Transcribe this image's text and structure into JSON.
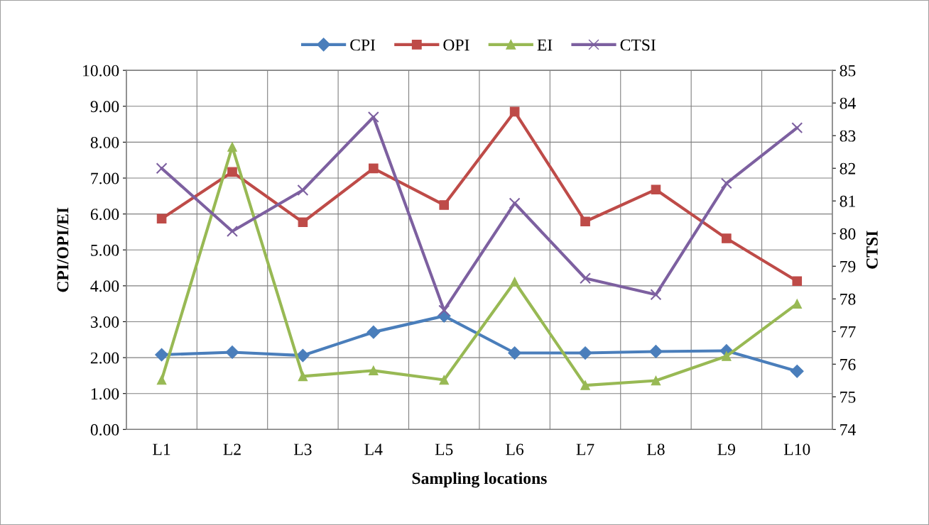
{
  "chart_data": {
    "type": "line",
    "xlabel": "Sampling locations",
    "ylabel": "CPI/OPI/EI",
    "y2label": "CTSI",
    "categories": [
      "L1",
      "L2",
      "L3",
      "L4",
      "L5",
      "L6",
      "L7",
      "L8",
      "L9",
      "L10"
    ],
    "series": [
      {
        "name": "CPI",
        "color": "#4a7ebb",
        "marker": "diamond",
        "values": [
          2.08,
          2.15,
          2.06,
          2.71,
          3.16,
          2.13,
          2.13,
          2.17,
          2.19,
          1.62
        ]
      },
      {
        "name": "OPI",
        "color": "#be4b48",
        "marker": "square",
        "values": [
          5.87,
          7.17,
          5.77,
          7.27,
          6.25,
          8.85,
          5.79,
          6.68,
          5.32,
          4.13
        ]
      },
      {
        "name": "EI",
        "color": "#98b954",
        "marker": "triangle",
        "values": [
          1.38,
          7.87,
          1.48,
          1.64,
          1.38,
          4.11,
          1.23,
          1.36,
          2.04,
          3.5
        ]
      },
      {
        "name": "CTSI",
        "color": "#7d60a0",
        "marker": "cross",
        "axis": "y2",
        "values": [
          82.0,
          80.07,
          81.33,
          83.57,
          77.65,
          80.93,
          78.63,
          78.13,
          81.54,
          83.24
        ]
      }
    ],
    "ylim": [
      0,
      10
    ],
    "yticks": [
      {
        "value": 0,
        "label": "0.00"
      },
      {
        "value": 1,
        "label": "1.00"
      },
      {
        "value": 2,
        "label": "2.00"
      },
      {
        "value": 3,
        "label": "3.00"
      },
      {
        "value": 4,
        "label": "4.00"
      },
      {
        "value": 5,
        "label": "5.00"
      },
      {
        "value": 6,
        "label": "6.00"
      },
      {
        "value": 7,
        "label": "7.00"
      },
      {
        "value": 8,
        "label": "8.00"
      },
      {
        "value": 9,
        "label": "9.00"
      },
      {
        "value": 10,
        "label": "10.00"
      }
    ],
    "y2lim": [
      74,
      85
    ],
    "y2ticks": [
      74,
      75,
      76,
      77,
      78,
      79,
      80,
      81,
      82,
      83,
      84,
      85
    ],
    "grid": true,
    "legend": "top",
    "line_style": "solid"
  }
}
